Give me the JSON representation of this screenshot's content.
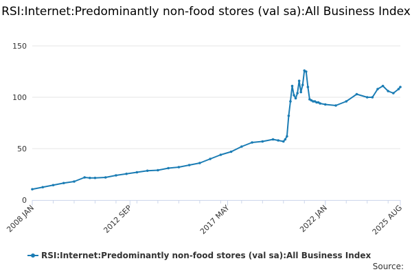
{
  "chart_data": {
    "type": "line",
    "title": "RSI:Internet:Predominantly non-food stores (val sa):All Business Index",
    "xlabel": "",
    "ylabel": "",
    "ylim": [
      0,
      150
    ],
    "yticks": [
      0,
      50,
      100,
      150
    ],
    "ytick_labels": [
      "0",
      "50",
      "100",
      "150"
    ],
    "xlim": [
      2008.0,
      2025.583
    ],
    "xticks": [
      2008.0,
      2012.667,
      2017.333,
      2022.0,
      2025.583
    ],
    "xtick_labels": [
      "2008 JAN",
      "2012 SEP",
      "2017 MAY",
      "2022 JAN",
      "2025 AUG"
    ],
    "grid": true,
    "color": "#1a7cb4",
    "series": [
      {
        "name": "RSI:Internet:Predominantly non-food stores (val sa):All Business Index",
        "x": [
          2008.0,
          2008.5,
          2009.0,
          2009.5,
          2010.0,
          2010.5,
          2010.75,
          2011.0,
          2011.5,
          2012.0,
          2012.5,
          2013.0,
          2013.5,
          2014.0,
          2014.5,
          2015.0,
          2015.5,
          2016.0,
          2016.5,
          2017.0,
          2017.5,
          2018.0,
          2018.5,
          2019.0,
          2019.5,
          2019.75,
          2020.0,
          2020.083,
          2020.167,
          2020.25,
          2020.333,
          2020.417,
          2020.5,
          2020.583,
          2020.667,
          2020.75,
          2020.833,
          2020.917,
          2021.0,
          2021.083,
          2021.167,
          2021.25,
          2021.333,
          2021.417,
          2021.5,
          2021.583,
          2021.667,
          2021.75,
          2022.0,
          2022.5,
          2023.0,
          2023.5,
          2024.0,
          2024.25,
          2024.5,
          2024.75,
          2025.0,
          2025.25,
          2025.5,
          2025.583
        ],
        "values": [
          10.5,
          12.5,
          14.5,
          16.5,
          18,
          22,
          21.5,
          21.5,
          22,
          24,
          25.5,
          27,
          28.5,
          29,
          31,
          32,
          34,
          36,
          40,
          44,
          47,
          52,
          56,
          57,
          59,
          58,
          57,
          59,
          62,
          82,
          96,
          111,
          102,
          99,
          104,
          116,
          105,
          112,
          126,
          125,
          110,
          98,
          97,
          96,
          96,
          95,
          95,
          94,
          93,
          92,
          96,
          103,
          100,
          100,
          108,
          111,
          106,
          104,
          108,
          110
        ]
      }
    ]
  },
  "legend": {
    "label": "RSI:Internet:Predominantly non-food stores (val sa):All Business Index"
  },
  "source": {
    "label": "Source:"
  }
}
